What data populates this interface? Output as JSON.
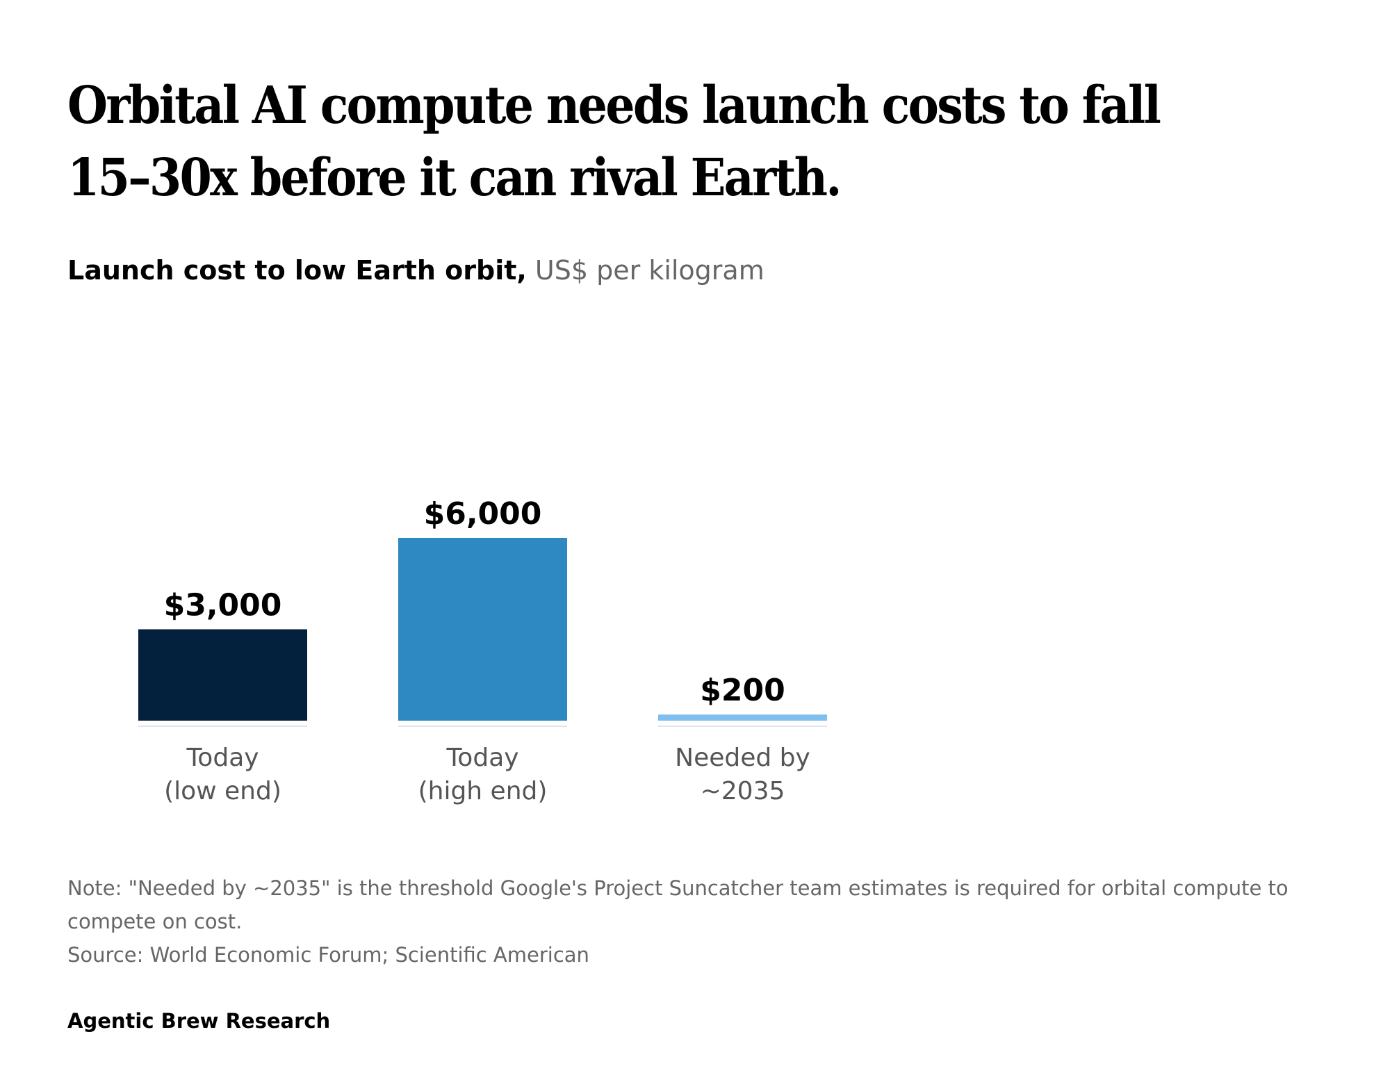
{
  "title": "Orbital AI compute needs launch costs to fall 15–30x before it can rival Earth.",
  "subtitle": {
    "main": "Launch cost to low Earth orbit,",
    "unit": " US$ per kilogram"
  },
  "chart_data": {
    "type": "bar",
    "categories": [
      [
        "Today",
        "(low end)"
      ],
      [
        "Today",
        "(high end)"
      ],
      [
        "Needed by",
        "~2035"
      ]
    ],
    "values": [
      3000,
      6000,
      200
    ],
    "value_labels": [
      "$3,000",
      "$6,000",
      "$200"
    ],
    "colors": [
      "#03203d",
      "#2e88c1",
      "#7fbff0"
    ],
    "ylim": [
      0,
      6000
    ],
    "grid": false,
    "legend": "none"
  },
  "footer": {
    "note": "Note: \"Needed by ~2035\" is the threshold Google's Project Suncatcher team estimates is required for orbital compute to compete on cost.",
    "source": "Source: World Economic Forum; Scientific American"
  },
  "brand": "Agentic Brew Research"
}
